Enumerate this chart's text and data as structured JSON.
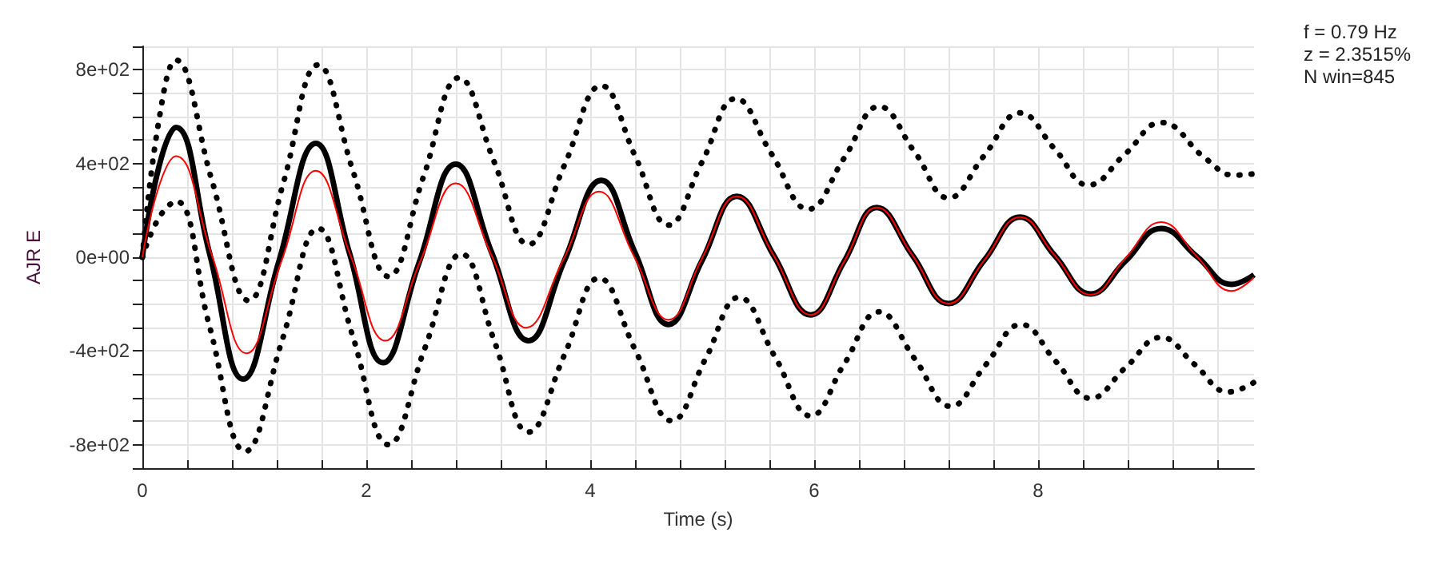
{
  "chart_data": {
    "type": "line",
    "xlabel": "Time (s)",
    "ylabel": "AJR E",
    "annotations": [
      "f = 0.79 Hz",
      "z = 2.3515%",
      "N win=845"
    ],
    "grid": true,
    "marker": "none",
    "xlim": [
      0,
      9.93
    ],
    "xticks": [
      0,
      {
        "value": 0.4,
        "label": null
      },
      {
        "value": 0.8,
        "label": null
      },
      {
        "value": 1.2,
        "label": null
      },
      {
        "value": 1.6,
        "label": null
      },
      2,
      {
        "value": 2.4,
        "label": null
      },
      {
        "value": 2.8,
        "label": null
      },
      {
        "value": 3.2,
        "label": null
      },
      {
        "value": 3.6,
        "label": null
      },
      4,
      {
        "value": 4.4,
        "label": null
      },
      {
        "value": 4.8,
        "label": null
      },
      {
        "value": 5.2,
        "label": null
      },
      {
        "value": 5.6,
        "label": null
      },
      6,
      {
        "value": 6.4,
        "label": null
      },
      {
        "value": 6.8,
        "label": null
      },
      {
        "value": 7.2,
        "label": null
      },
      {
        "value": 7.6,
        "label": null
      },
      8,
      {
        "value": 8.4,
        "label": null
      },
      {
        "value": 8.8,
        "label": null
      },
      {
        "value": 9.2,
        "label": null
      },
      {
        "value": 9.6,
        "label": null
      }
    ],
    "ylim": [
      -900,
      900
    ],
    "yticks": [
      {
        "value": -900,
        "label": null
      },
      {
        "value": -800,
        "label": "-8e+02"
      },
      {
        "value": -700,
        "label": null
      },
      {
        "value": -600,
        "label": null
      },
      {
        "value": -500,
        "label": null
      },
      {
        "value": -400,
        "label": "-4e+02"
      },
      {
        "value": -300,
        "label": null
      },
      {
        "value": -200,
        "label": null
      },
      {
        "value": -100,
        "label": null
      },
      {
        "value": 0,
        "label": "0e+00"
      },
      {
        "value": 100,
        "label": null
      },
      {
        "value": 200,
        "label": null
      },
      {
        "value": 300,
        "label": null
      },
      {
        "value": 400,
        "label": "4e+02"
      },
      {
        "value": 500,
        "label": null
      },
      {
        "value": 600,
        "label": null
      },
      {
        "value": 700,
        "label": null
      },
      {
        "value": 800,
        "label": "8e+02"
      },
      {
        "value": 900,
        "label": null
      }
    ],
    "series": [
      {
        "color": "#000000",
        "line_style": "dotted",
        "x": [
          0,
          0.15,
          0.3,
          0.62,
          0.95,
          1.26,
          1.57,
          1.88,
          2.2,
          2.51,
          2.83,
          3.14,
          3.45,
          3.77,
          4.1,
          4.4,
          4.7,
          5.0,
          5.3,
          5.62,
          5.95,
          6.27,
          6.58,
          6.9,
          7.2,
          7.52,
          7.84,
          8.15,
          8.45,
          8.78,
          9.1,
          9.5,
          9.75,
          9.93
        ],
        "values": [
          0,
          590,
          841,
          330,
          -185,
          318,
          821,
          370,
          -82,
          342,
          766,
          410,
          55,
          393,
          732,
          434,
          137,
          407,
          677,
          441,
          205,
          424,
          643,
          448,
          253,
          434,
          616,
          462,
          308,
          441,
          575,
          420,
          350,
          356
        ]
      },
      {
        "color": "#000000",
        "line_style": "dotted",
        "x": [
          0,
          0.15,
          0.3,
          0.6,
          0.92,
          1.25,
          1.57,
          1.88,
          2.2,
          2.52,
          2.85,
          3.15,
          3.45,
          3.77,
          4.08,
          4.4,
          4.73,
          5.03,
          5.33,
          5.65,
          5.97,
          6.27,
          6.58,
          6.9,
          7.22,
          7.53,
          7.85,
          8.16,
          8.47,
          8.78,
          9.1,
          9.4,
          9.7,
          9.93
        ],
        "values": [
          0,
          170,
          239,
          -295,
          -828,
          -352,
          123,
          -338,
          -800,
          -393,
          14,
          -366,
          -746,
          -417,
          -89,
          -393,
          -698,
          -434,
          -171,
          -424,
          -677,
          -455,
          -233,
          -434,
          -636,
          -461,
          -287,
          -445,
          -602,
          -472,
          -342,
          -458,
          -575,
          -534
        ]
      },
      {
        "color": "#000000",
        "line_style": "solid",
        "x": [
          0,
          0.15,
          0.3,
          0.6,
          0.9,
          1.22,
          1.55,
          1.85,
          2.15,
          2.47,
          2.8,
          3.12,
          3.45,
          3.77,
          4.1,
          4.4,
          4.7,
          5.0,
          5.31,
          5.64,
          5.97,
          6.27,
          6.56,
          6.88,
          7.2,
          7.52,
          7.84,
          8.15,
          8.47,
          8.78,
          9.1,
          9.42,
          9.73,
          9.93
        ],
        "values": [
          0,
          390,
          554,
          17,
          -520,
          -17,
          486,
          18,
          -450,
          -26,
          397,
          20,
          -356,
          -14,
          328,
          20,
          -287,
          -13,
          260,
          7,
          -246,
          -17,
          212,
          7,
          -198,
          -13,
          171,
          7,
          -157,
          -17,
          123,
          3,
          -116,
          -75
        ]
      },
      {
        "color": "#ff0000",
        "line_style": "solid",
        "x": [
          0,
          0.15,
          0.3,
          0.62,
          0.93,
          1.24,
          1.55,
          1.86,
          2.17,
          2.48,
          2.8,
          3.12,
          3.43,
          3.76,
          4.08,
          4.39,
          4.7,
          5.0,
          5.31,
          5.64,
          5.97,
          6.27,
          6.56,
          6.88,
          7.2,
          7.52,
          7.84,
          8.15,
          8.47,
          8.78,
          9.1,
          9.42,
          9.73,
          9.93
        ],
        "values": [
          0,
          305,
          431,
          10,
          -410,
          -20,
          369,
          6,
          -356,
          -20,
          315,
          7,
          -301,
          -10,
          280,
          6,
          -267,
          -4,
          260,
          7,
          -246,
          -17,
          212,
          7,
          -198,
          -13,
          171,
          7,
          -160,
          -5,
          150,
          3,
          -144,
          -85
        ]
      }
    ]
  }
}
